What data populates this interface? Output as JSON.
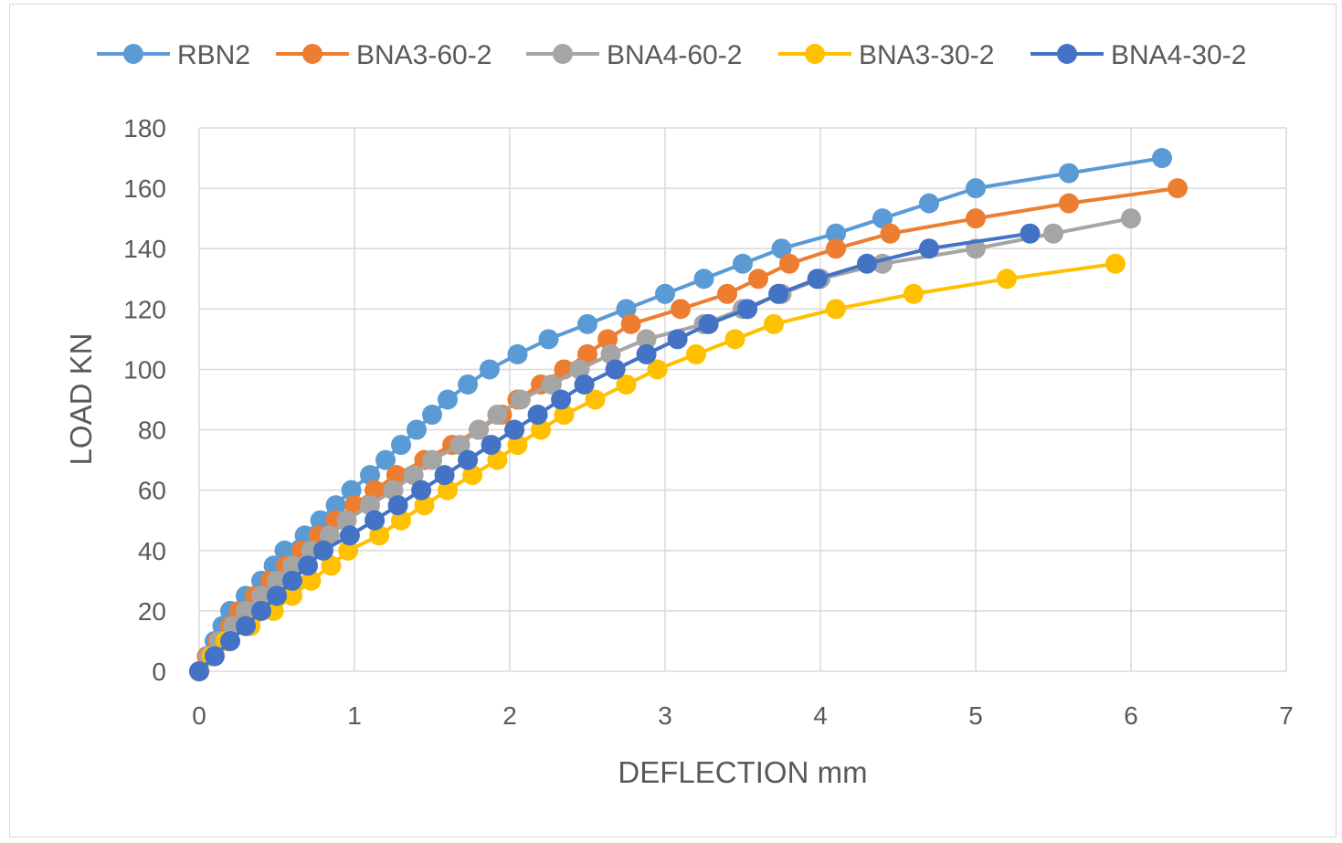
{
  "chart_data": {
    "type": "line",
    "title": "",
    "xlabel": "DEFLECTION mm",
    "ylabel": "LOAD KN",
    "xlim": [
      0,
      7
    ],
    "ylim": [
      0,
      180
    ],
    "x_ticks": [
      "0",
      "1",
      "2",
      "3",
      "4",
      "5",
      "6",
      "7"
    ],
    "y_ticks": [
      "0",
      "20",
      "40",
      "60",
      "80",
      "100",
      "120",
      "140",
      "160",
      "180"
    ],
    "grid": true,
    "legend_position": "top",
    "series": [
      {
        "name": "RBN2",
        "color": "#5b9bd5",
        "points": [
          [
            0,
            0
          ],
          [
            0.05,
            5
          ],
          [
            0.1,
            10
          ],
          [
            0.15,
            15
          ],
          [
            0.2,
            20
          ],
          [
            0.3,
            25
          ],
          [
            0.4,
            30
          ],
          [
            0.48,
            35
          ],
          [
            0.55,
            40
          ],
          [
            0.68,
            45
          ],
          [
            0.78,
            50
          ],
          [
            0.88,
            55
          ],
          [
            0.98,
            60
          ],
          [
            1.1,
            65
          ],
          [
            1.2,
            70
          ],
          [
            1.3,
            75
          ],
          [
            1.4,
            80
          ],
          [
            1.5,
            85
          ],
          [
            1.6,
            90
          ],
          [
            1.73,
            95
          ],
          [
            1.87,
            100
          ],
          [
            2.05,
            105
          ],
          [
            2.25,
            110
          ],
          [
            2.5,
            115
          ],
          [
            2.75,
            120
          ],
          [
            3.0,
            125
          ],
          [
            3.25,
            130
          ],
          [
            3.5,
            135
          ],
          [
            3.75,
            140
          ],
          [
            4.1,
            145
          ],
          [
            4.4,
            150
          ],
          [
            4.7,
            155
          ],
          [
            5.0,
            160
          ],
          [
            5.6,
            165
          ],
          [
            6.2,
            170
          ]
        ]
      },
      {
        "name": "BNA3-60-2",
        "color": "#ed7d31",
        "points": [
          [
            0,
            0
          ],
          [
            0.05,
            5
          ],
          [
            0.12,
            10
          ],
          [
            0.2,
            15
          ],
          [
            0.26,
            20
          ],
          [
            0.36,
            25
          ],
          [
            0.46,
            30
          ],
          [
            0.56,
            35
          ],
          [
            0.66,
            40
          ],
          [
            0.77,
            45
          ],
          [
            0.88,
            50
          ],
          [
            1.0,
            55
          ],
          [
            1.13,
            60
          ],
          [
            1.27,
            65
          ],
          [
            1.45,
            70
          ],
          [
            1.63,
            75
          ],
          [
            1.8,
            80
          ],
          [
            1.95,
            85
          ],
          [
            2.05,
            90
          ],
          [
            2.2,
            95
          ],
          [
            2.35,
            100
          ],
          [
            2.5,
            105
          ],
          [
            2.63,
            110
          ],
          [
            2.78,
            115
          ],
          [
            3.1,
            120
          ],
          [
            3.4,
            125
          ],
          [
            3.6,
            130
          ],
          [
            3.8,
            135
          ],
          [
            4.1,
            140
          ],
          [
            4.45,
            145
          ],
          [
            5.0,
            150
          ],
          [
            5.6,
            155
          ],
          [
            6.3,
            160
          ]
        ]
      },
      {
        "name": "BNA4-60-2",
        "color": "#a5a5a5",
        "points": [
          [
            0,
            0
          ],
          [
            0.06,
            5
          ],
          [
            0.13,
            10
          ],
          [
            0.22,
            15
          ],
          [
            0.3,
            20
          ],
          [
            0.4,
            25
          ],
          [
            0.5,
            30
          ],
          [
            0.6,
            35
          ],
          [
            0.72,
            40
          ],
          [
            0.84,
            45
          ],
          [
            0.95,
            50
          ],
          [
            1.1,
            55
          ],
          [
            1.25,
            60
          ],
          [
            1.38,
            65
          ],
          [
            1.5,
            70
          ],
          [
            1.68,
            75
          ],
          [
            1.8,
            80
          ],
          [
            1.92,
            85
          ],
          [
            2.07,
            90
          ],
          [
            2.27,
            95
          ],
          [
            2.45,
            100
          ],
          [
            2.65,
            105
          ],
          [
            2.88,
            110
          ],
          [
            3.25,
            115
          ],
          [
            3.5,
            120
          ],
          [
            3.75,
            125
          ],
          [
            4.0,
            130
          ],
          [
            4.4,
            135
          ],
          [
            5.0,
            140
          ],
          [
            5.5,
            145
          ],
          [
            6.0,
            150
          ]
        ]
      },
      {
        "name": "BNA3-30-2",
        "color": "#ffc000",
        "points": [
          [
            0,
            0
          ],
          [
            0.08,
            5
          ],
          [
            0.17,
            10
          ],
          [
            0.33,
            15
          ],
          [
            0.48,
            20
          ],
          [
            0.6,
            25
          ],
          [
            0.72,
            30
          ],
          [
            0.85,
            35
          ],
          [
            0.96,
            40
          ],
          [
            1.16,
            45
          ],
          [
            1.3,
            50
          ],
          [
            1.45,
            55
          ],
          [
            1.6,
            60
          ],
          [
            1.76,
            65
          ],
          [
            1.92,
            70
          ],
          [
            2.05,
            75
          ],
          [
            2.2,
            80
          ],
          [
            2.35,
            85
          ],
          [
            2.55,
            90
          ],
          [
            2.75,
            95
          ],
          [
            2.95,
            100
          ],
          [
            3.2,
            105
          ],
          [
            3.45,
            110
          ],
          [
            3.7,
            115
          ],
          [
            4.1,
            120
          ],
          [
            4.6,
            125
          ],
          [
            5.2,
            130
          ],
          [
            5.9,
            135
          ]
        ]
      },
      {
        "name": "BNA4-30-2",
        "color": "#4472c4",
        "points": [
          [
            0,
            0
          ],
          [
            0.1,
            5
          ],
          [
            0.2,
            10
          ],
          [
            0.3,
            15
          ],
          [
            0.4,
            20
          ],
          [
            0.5,
            25
          ],
          [
            0.6,
            30
          ],
          [
            0.7,
            35
          ],
          [
            0.8,
            40
          ],
          [
            0.97,
            45
          ],
          [
            1.13,
            50
          ],
          [
            1.28,
            55
          ],
          [
            1.43,
            60
          ],
          [
            1.58,
            65
          ],
          [
            1.73,
            70
          ],
          [
            1.88,
            75
          ],
          [
            2.03,
            80
          ],
          [
            2.18,
            85
          ],
          [
            2.33,
            90
          ],
          [
            2.48,
            95
          ],
          [
            2.68,
            100
          ],
          [
            2.88,
            105
          ],
          [
            3.08,
            110
          ],
          [
            3.28,
            115
          ],
          [
            3.53,
            120
          ],
          [
            3.73,
            125
          ],
          [
            3.98,
            130
          ],
          [
            4.3,
            135
          ],
          [
            4.7,
            140
          ],
          [
            5.35,
            145
          ]
        ]
      }
    ]
  }
}
